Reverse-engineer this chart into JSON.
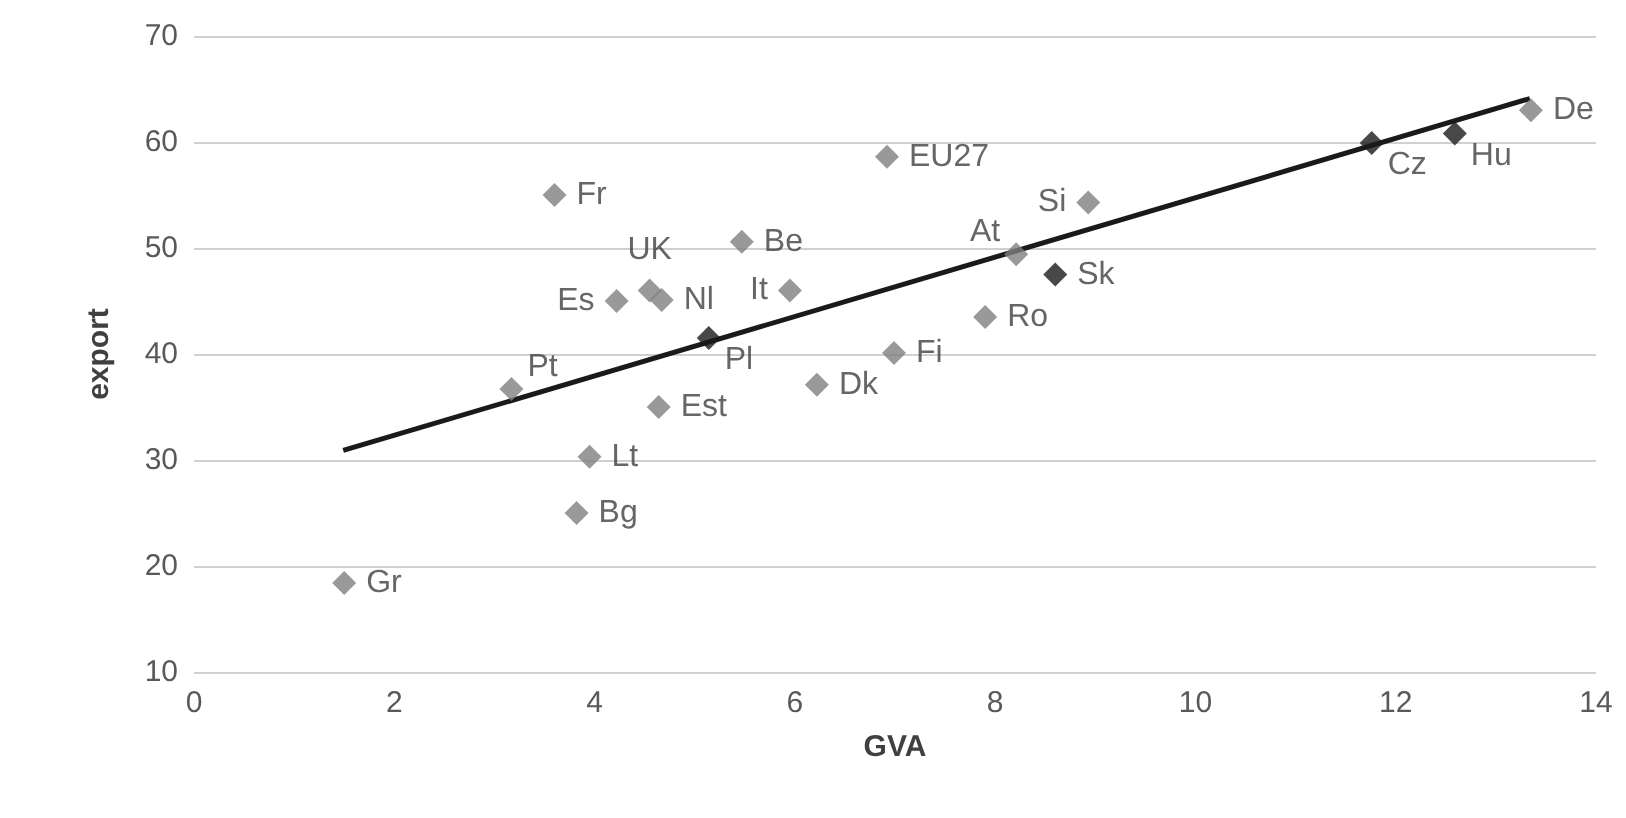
{
  "chart_data": {
    "type": "scatter",
    "xlabel": "GVA",
    "ylabel": "export",
    "xlim": [
      0,
      14
    ],
    "xticks": [
      0,
      2,
      4,
      6,
      8,
      10,
      12,
      14
    ],
    "ylim": [
      10,
      70
    ],
    "yticks": [
      10,
      20,
      30,
      40,
      50,
      60,
      70
    ],
    "grid": "y",
    "marker": "diamond",
    "series": [
      {
        "color": "#808080",
        "x": [
          1.5,
          3.6,
          5.47,
          4.55,
          4.67,
          4.22,
          5.95,
          3.17,
          4.64,
          6.22,
          3.95,
          3.82,
          6.92,
          8.93,
          8.21,
          7.9,
          6.99,
          13.35
        ],
        "values": [
          18.4,
          55.0,
          50.6,
          46.0,
          45.1,
          45.0,
          46.0,
          36.7,
          35.0,
          37.1,
          30.3,
          25.0,
          58.6,
          54.3,
          49.4,
          43.5,
          40.1,
          63.0
        ]
      },
      {
        "color": "#1a1a1a",
        "x": [
          5.14,
          8.6,
          11.76,
          12.59
        ],
        "values": [
          41.5,
          47.5,
          59.9,
          60.8
        ]
      },
      {
        "type": "line",
        "color": "#1a1a1a",
        "marker": "none",
        "x": [
          1.49,
          13.34
        ],
        "values": [
          30.9,
          64.1
        ]
      }
    ],
    "annotations": [
      {
        "text": "Gr",
        "x": 1.5,
        "y": 18.4
      },
      {
        "text": "Fr",
        "x": 3.6,
        "y": 55.0
      },
      {
        "text": "Be",
        "x": 5.47,
        "y": 50.6
      },
      {
        "text": "UK",
        "x": 4.55,
        "y": 46.0
      },
      {
        "text": "Nl",
        "x": 4.67,
        "y": 45.1
      },
      {
        "text": "Es",
        "x": 4.22,
        "y": 45.0
      },
      {
        "text": "It",
        "x": 5.95,
        "y": 46.0
      },
      {
        "text": "Pt",
        "x": 3.17,
        "y": 36.7
      },
      {
        "text": "Est",
        "x": 4.64,
        "y": 35.0
      },
      {
        "text": "Dk",
        "x": 6.22,
        "y": 37.1
      },
      {
        "text": "Lt",
        "x": 3.95,
        "y": 30.3
      },
      {
        "text": "Bg",
        "x": 3.82,
        "y": 25.0
      },
      {
        "text": "EU27",
        "x": 6.92,
        "y": 58.6
      },
      {
        "text": "Si",
        "x": 8.93,
        "y": 54.3
      },
      {
        "text": "At",
        "x": 8.21,
        "y": 49.4
      },
      {
        "text": "Ro",
        "x": 7.9,
        "y": 43.5
      },
      {
        "text": "Fi",
        "x": 6.99,
        "y": 40.1
      },
      {
        "text": "De",
        "x": 13.35,
        "y": 63.0
      },
      {
        "text": "Pl",
        "x": 5.14,
        "y": 41.5
      },
      {
        "text": "Sk",
        "x": 8.6,
        "y": 47.5
      },
      {
        "text": "Cz",
        "x": 11.76,
        "y": 59.9
      },
      {
        "text": "Hu",
        "x": 12.59,
        "y": 60.8
      }
    ]
  }
}
